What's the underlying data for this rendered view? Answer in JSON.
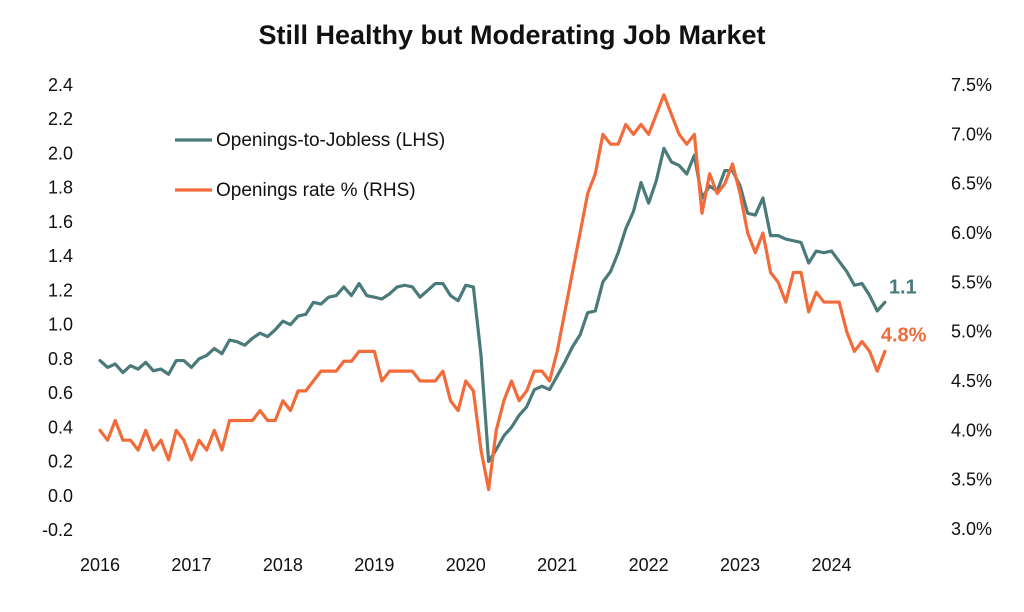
{
  "chart_data": {
    "type": "line",
    "title": "Still Healthy but Moderating Job Market",
    "x_tick_labels": [
      "2016",
      "2017",
      "2018",
      "2019",
      "2020",
      "2021",
      "2022",
      "2023",
      "2024"
    ],
    "left_axis": {
      "ylim": [
        -0.2,
        2.4
      ],
      "ticks": [
        "-0.2",
        "0.0",
        "0.2",
        "0.4",
        "0.6",
        "0.8",
        "1.0",
        "1.2",
        "1.4",
        "1.6",
        "1.8",
        "2.0",
        "2.2",
        "2.4"
      ]
    },
    "right_axis": {
      "ylim": [
        3.0,
        7.5
      ],
      "ticks": [
        "3.0%",
        "3.5%",
        "4.0%",
        "4.5%",
        "5.0%",
        "5.5%",
        "6.0%",
        "6.5%",
        "7.0%",
        "7.5%"
      ]
    },
    "grid": false,
    "legend_position": "top-left",
    "series": [
      {
        "name": "Openings-to-Jobless (LHS)",
        "axis": "left",
        "color": "#4a7a7a",
        "end_label": "1.1",
        "values": [
          0.79,
          0.75,
          0.77,
          0.72,
          0.76,
          0.74,
          0.78,
          0.73,
          0.74,
          0.71,
          0.79,
          0.79,
          0.75,
          0.8,
          0.82,
          0.86,
          0.83,
          0.91,
          0.9,
          0.88,
          0.92,
          0.95,
          0.93,
          0.97,
          1.02,
          1.0,
          1.05,
          1.06,
          1.13,
          1.12,
          1.16,
          1.17,
          1.22,
          1.17,
          1.24,
          1.17,
          1.16,
          1.15,
          1.18,
          1.22,
          1.23,
          1.22,
          1.16,
          1.2,
          1.24,
          1.24,
          1.17,
          1.14,
          1.23,
          1.22,
          0.82,
          0.2,
          0.27,
          0.35,
          0.4,
          0.47,
          0.52,
          0.62,
          0.64,
          0.62,
          0.7,
          0.78,
          0.87,
          0.94,
          1.07,
          1.08,
          1.25,
          1.31,
          1.42,
          1.56,
          1.66,
          1.83,
          1.71,
          1.84,
          2.03,
          1.95,
          1.93,
          1.88,
          1.99,
          1.74,
          1.81,
          1.78,
          1.9,
          1.9,
          1.81,
          1.65,
          1.64,
          1.74,
          1.52,
          1.52,
          1.5,
          1.49,
          1.48,
          1.36,
          1.43,
          1.42,
          1.43,
          1.37,
          1.31,
          1.23,
          1.24,
          1.17,
          1.08,
          1.13
        ]
      },
      {
        "name": "Openings rate % (RHS)",
        "axis": "right",
        "color": "#f26b3a",
        "end_label": "4.8%",
        "values": [
          4.0,
          3.9,
          4.1,
          3.9,
          3.9,
          3.8,
          4.0,
          3.8,
          3.9,
          3.7,
          4.0,
          3.9,
          3.7,
          3.9,
          3.8,
          4.0,
          3.8,
          4.1,
          4.1,
          4.1,
          4.1,
          4.2,
          4.1,
          4.1,
          4.3,
          4.2,
          4.4,
          4.4,
          4.5,
          4.6,
          4.6,
          4.6,
          4.7,
          4.7,
          4.8,
          4.8,
          4.8,
          4.5,
          4.6,
          4.6,
          4.6,
          4.6,
          4.5,
          4.5,
          4.5,
          4.6,
          4.3,
          4.2,
          4.5,
          4.4,
          3.8,
          3.4,
          4.0,
          4.3,
          4.5,
          4.3,
          4.4,
          4.6,
          4.6,
          4.5,
          4.8,
          5.2,
          5.6,
          6.0,
          6.4,
          6.6,
          7.0,
          6.9,
          6.9,
          7.1,
          7.0,
          7.1,
          7.0,
          7.2,
          7.4,
          7.2,
          7.0,
          6.9,
          7.0,
          6.2,
          6.6,
          6.4,
          6.5,
          6.7,
          6.4,
          6.0,
          5.8,
          6.0,
          5.6,
          5.5,
          5.3,
          5.6,
          5.6,
          5.2,
          5.4,
          5.3,
          5.3,
          5.3,
          5.0,
          4.8,
          4.9,
          4.8,
          4.6,
          4.8
        ]
      }
    ]
  }
}
